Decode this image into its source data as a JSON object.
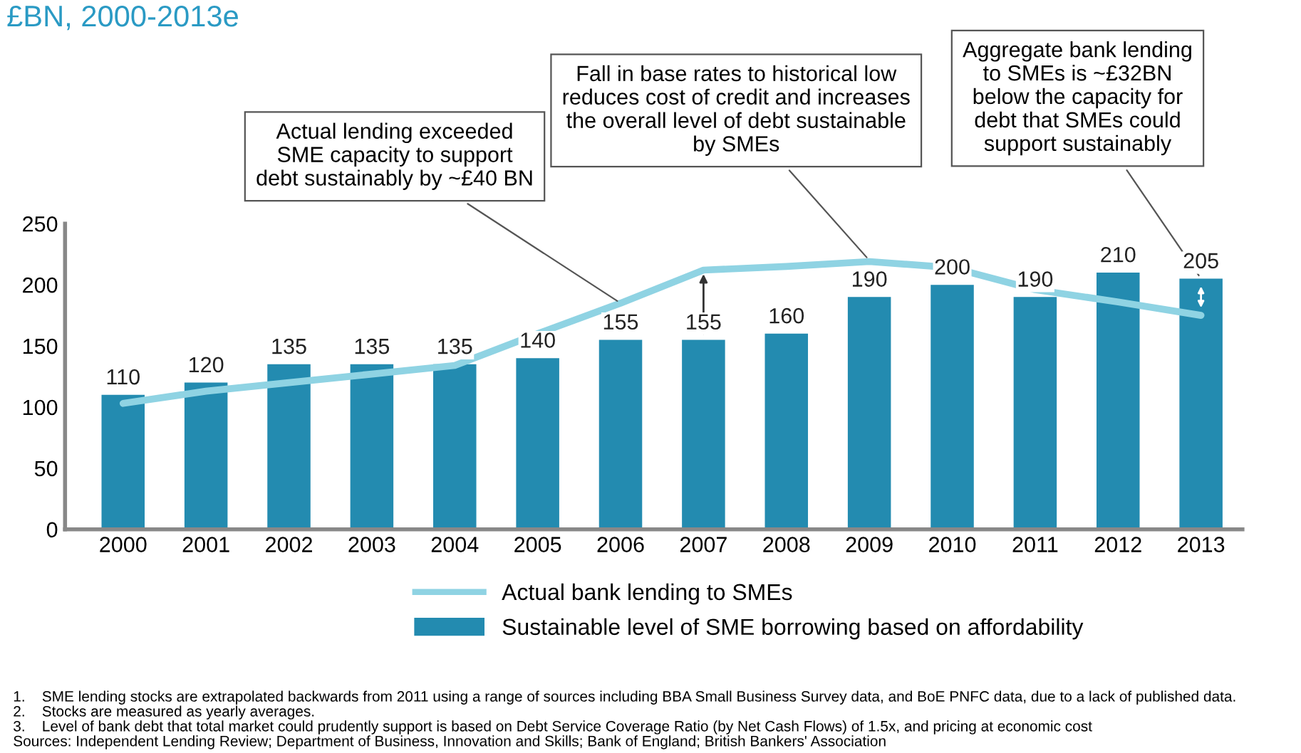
{
  "chart_data": {
    "type": "bar",
    "title": "£BN, 2000-2013e",
    "categories": [
      "2000",
      "2001",
      "2002",
      "2003",
      "2004",
      "2005",
      "2006",
      "2007",
      "2008",
      "2009",
      "2010",
      "2011",
      "2012",
      "2013"
    ],
    "series": [
      {
        "name": "Actual bank lending to SMEs",
        "type": "line",
        "color": "#8fd3e3",
        "values": [
          103,
          113,
          120,
          127,
          134,
          160,
          185,
          212,
          215,
          219,
          214,
          196,
          186,
          175
        ]
      },
      {
        "name": "Sustainable level of SME borrowing based on affordability",
        "color": "#238bb0",
        "values": [
          110,
          120,
          135,
          135,
          135,
          140,
          155,
          155,
          160,
          190,
          200,
          190,
          210,
          205
        ],
        "value_labels": [
          "110",
          "120",
          "135",
          "135",
          "135",
          "140",
          "155",
          "155",
          "160",
          "190",
          "200",
          "190",
          "210",
          "205"
        ]
      }
    ],
    "ylim": [
      0,
      250
    ],
    "yticks": [
      0,
      50,
      100,
      150,
      200,
      250
    ],
    "grid": false,
    "legend": "bottom",
    "annotations": [
      {
        "text": "Actual lending exceeded\nSME capacity to support\ndebt sustainably by ~£40 BN",
        "x": "2006",
        "y": 185
      },
      {
        "text": "Fall in base rates to historical low\nreduces cost of credit and increases\nthe overall level of debt sustainable\nby SMEs",
        "x": "2009",
        "y": 220
      },
      {
        "text": "Aggregate bank lending\nto SMEs is ~£32BN\nbelow the capacity for\ndebt that SMEs could\nsupport sustainably",
        "x": "2013",
        "y": 205
      },
      "1.    SME lending stocks are extrapolated backwards from 2011 using a range of sources including BBA Small Business Survey data, and BoE PNFC data, due to a lack of published data.\n2.    Stocks are measured as yearly averages.\n3.    Level of bank debt that total market could prudently support is based on Debt Service Coverage Ratio (by Net Cash Flows) of 1.5x, and pricing at economic cost\nSources: Independent Lending Review; Department of Business, Innovation and Skills; Bank of England; British Bankers' Association"
    ]
  }
}
